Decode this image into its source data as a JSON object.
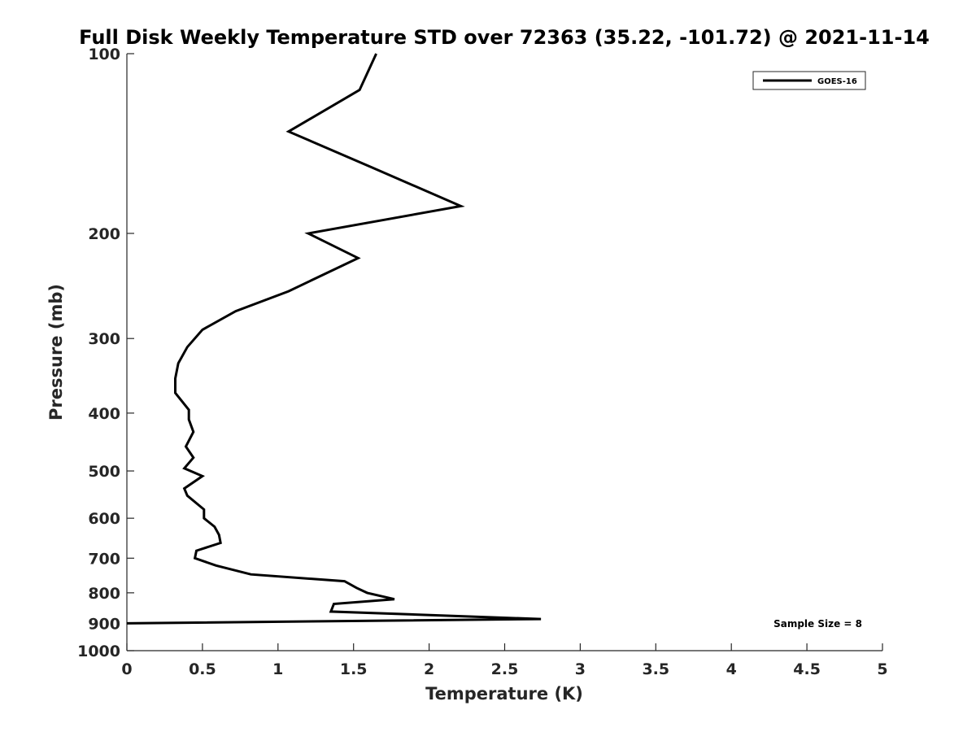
{
  "chart_data": {
    "type": "line",
    "title": "Full Disk Weekly Temperature STD over 72363 (35.22, -101.72) @ 2021-11-14",
    "xlabel": "Temperature (K)",
    "ylabel": "Pressure (mb)",
    "xlim": [
      0,
      5
    ],
    "ylim": [
      1000,
      100
    ],
    "yscale": "log",
    "y_reversed": true,
    "xticks": [
      "0",
      "0.5",
      "1",
      "1.5",
      "2",
      "2.5",
      "3",
      "3.5",
      "4",
      "4.5",
      "5"
    ],
    "yticks": [
      "100",
      "200",
      "300",
      "400",
      "500",
      "600",
      "700",
      "800",
      "900",
      "1000"
    ],
    "grid": false,
    "legend": {
      "position": "top-right",
      "entries": [
        "GOES-16"
      ]
    },
    "annotation": "Sample Size = 8",
    "series": [
      {
        "name": "GOES-16",
        "color": "#000000",
        "x": [
          1.65,
          1.54,
          1.07,
          1.62,
          2.21,
          1.2,
          1.53,
          1.07,
          0.72,
          0.5,
          0.4,
          0.34,
          0.32,
          0.32,
          0.41,
          0.41,
          0.44,
          0.39,
          0.44,
          0.38,
          0.5,
          0.38,
          0.4,
          0.51,
          0.51,
          0.58,
          0.61,
          0.62,
          0.46,
          0.45,
          0.59,
          0.82,
          1.44,
          1.52,
          1.59,
          1.77,
          1.37,
          1.35,
          2.74,
          0.0
        ],
        "y": [
          100,
          115,
          135,
          155,
          180,
          200,
          220,
          250,
          270,
          290,
          310,
          330,
          350,
          370,
          395,
          410,
          430,
          455,
          475,
          495,
          510,
          535,
          550,
          580,
          600,
          620,
          640,
          660,
          680,
          700,
          720,
          745,
          765,
          785,
          800,
          820,
          835,
          860,
          885,
          900
        ]
      }
    ]
  }
}
